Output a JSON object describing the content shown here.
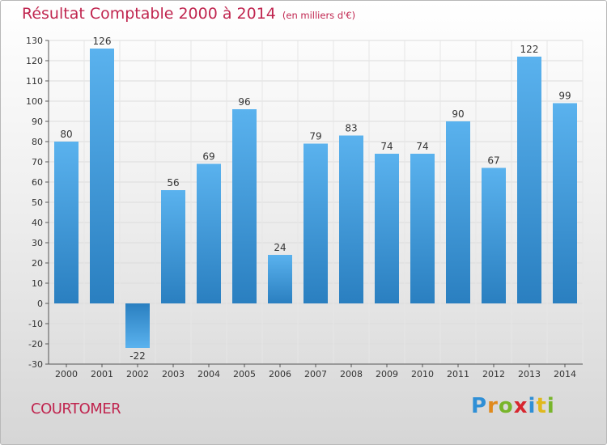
{
  "header": {
    "title": "Résultat Comptable 2000 à 2014",
    "subtitle": "(en milliers d'€)"
  },
  "footer": {
    "place": "COURTOMER",
    "logo": "Proxiti"
  },
  "colors": {
    "accent": "#c0254f",
    "bar_light": "#5ab2ee",
    "bar_dark": "#2a7fc0"
  },
  "chart_data": {
    "type": "bar",
    "title": "Résultat Comptable 2000 à 2014",
    "subtitle": "(en milliers d'€)",
    "categories": [
      "2000",
      "2001",
      "2002",
      "2003",
      "2004",
      "2005",
      "2006",
      "2007",
      "2008",
      "2009",
      "2010",
      "2011",
      "2012",
      "2013",
      "2014"
    ],
    "values": [
      80,
      126,
      -22,
      56,
      69,
      96,
      24,
      79,
      83,
      74,
      74,
      90,
      67,
      122,
      99
    ],
    "ylim": [
      -30,
      130
    ],
    "yticks": [
      -30,
      -20,
      -10,
      0,
      10,
      20,
      30,
      40,
      50,
      60,
      70,
      80,
      90,
      100,
      110,
      120,
      130
    ],
    "grid": true,
    "legend": "none"
  }
}
